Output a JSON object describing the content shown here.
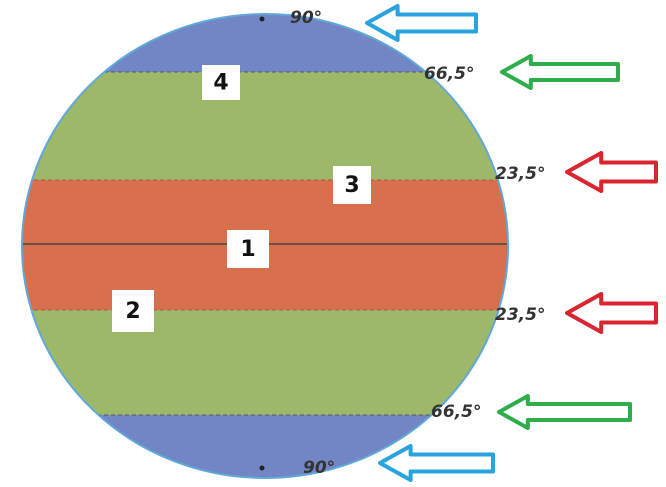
{
  "latitude_labels": [
    "90°",
    "66,5°",
    "23,5°",
    "23,5°",
    "66,5°",
    "90°"
  ],
  "zones": [
    "4",
    "3",
    "1",
    "2"
  ]
}
